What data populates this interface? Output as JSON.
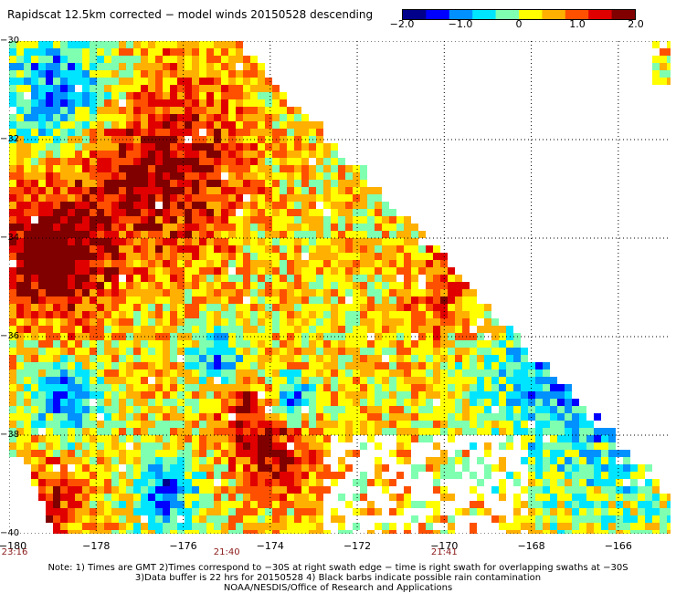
{
  "title": "Rapidscat 12.5km corrected − model winds 20150528 descending",
  "colorbar": {
    "colors": [
      "#00008b",
      "#0000ff",
      "#0090ff",
      "#00e5ff",
      "#7fffb0",
      "#ffff00",
      "#ffb000",
      "#ff5000",
      "#e00000",
      "#800000"
    ],
    "labels": [
      {
        "value": -2.0,
        "text": "−2.0"
      },
      {
        "value": -1.0,
        "text": "−1.0"
      },
      {
        "value": 0,
        "text": "0"
      },
      {
        "value": 1.0,
        "text": "1.0"
      },
      {
        "value": 2.0,
        "text": "2.0"
      }
    ],
    "range": [
      -2.0,
      2.0
    ]
  },
  "map": {
    "lon_range": [
      -180,
      -164.8
    ],
    "lat_range": [
      -40,
      -30
    ],
    "lat_labels": [
      {
        "lat": -30,
        "text": "−30"
      },
      {
        "lat": -32,
        "text": "−32"
      },
      {
        "lat": -34,
        "text": "−34"
      },
      {
        "lat": -36,
        "text": "−36"
      },
      {
        "lat": -38,
        "text": "−38"
      },
      {
        "lat": -40,
        "text": "−40"
      }
    ],
    "lon_labels": [
      {
        "lon": -180,
        "text": "−180"
      },
      {
        "lon": -178,
        "text": "−178"
      },
      {
        "lon": -176,
        "text": "−176"
      },
      {
        "lon": -174,
        "text": "−174"
      },
      {
        "lon": -172,
        "text": "−172"
      },
      {
        "lon": -170,
        "text": "−170"
      },
      {
        "lon": -168,
        "text": "−168"
      },
      {
        "lon": -166,
        "text": "−166"
      }
    ],
    "gridline_color": "#000000"
  },
  "time_labels": [
    {
      "lon": -180,
      "text": "23:16"
    },
    {
      "lon": -175,
      "text": "21:40"
    },
    {
      "lon": -170,
      "text": "21:41"
    }
  ],
  "notes": {
    "line1": "Note: 1) Times are GMT 2)Times correspond to −30S at right swath edge − time is right swath for overlapping swaths at −30S",
    "line2": "3)Data buffer is 22 hrs for 20150528 4) Black barbs indicate possible rain contamination",
    "line3": "NOAA/NESDIS/Office of Research and Applications"
  }
}
